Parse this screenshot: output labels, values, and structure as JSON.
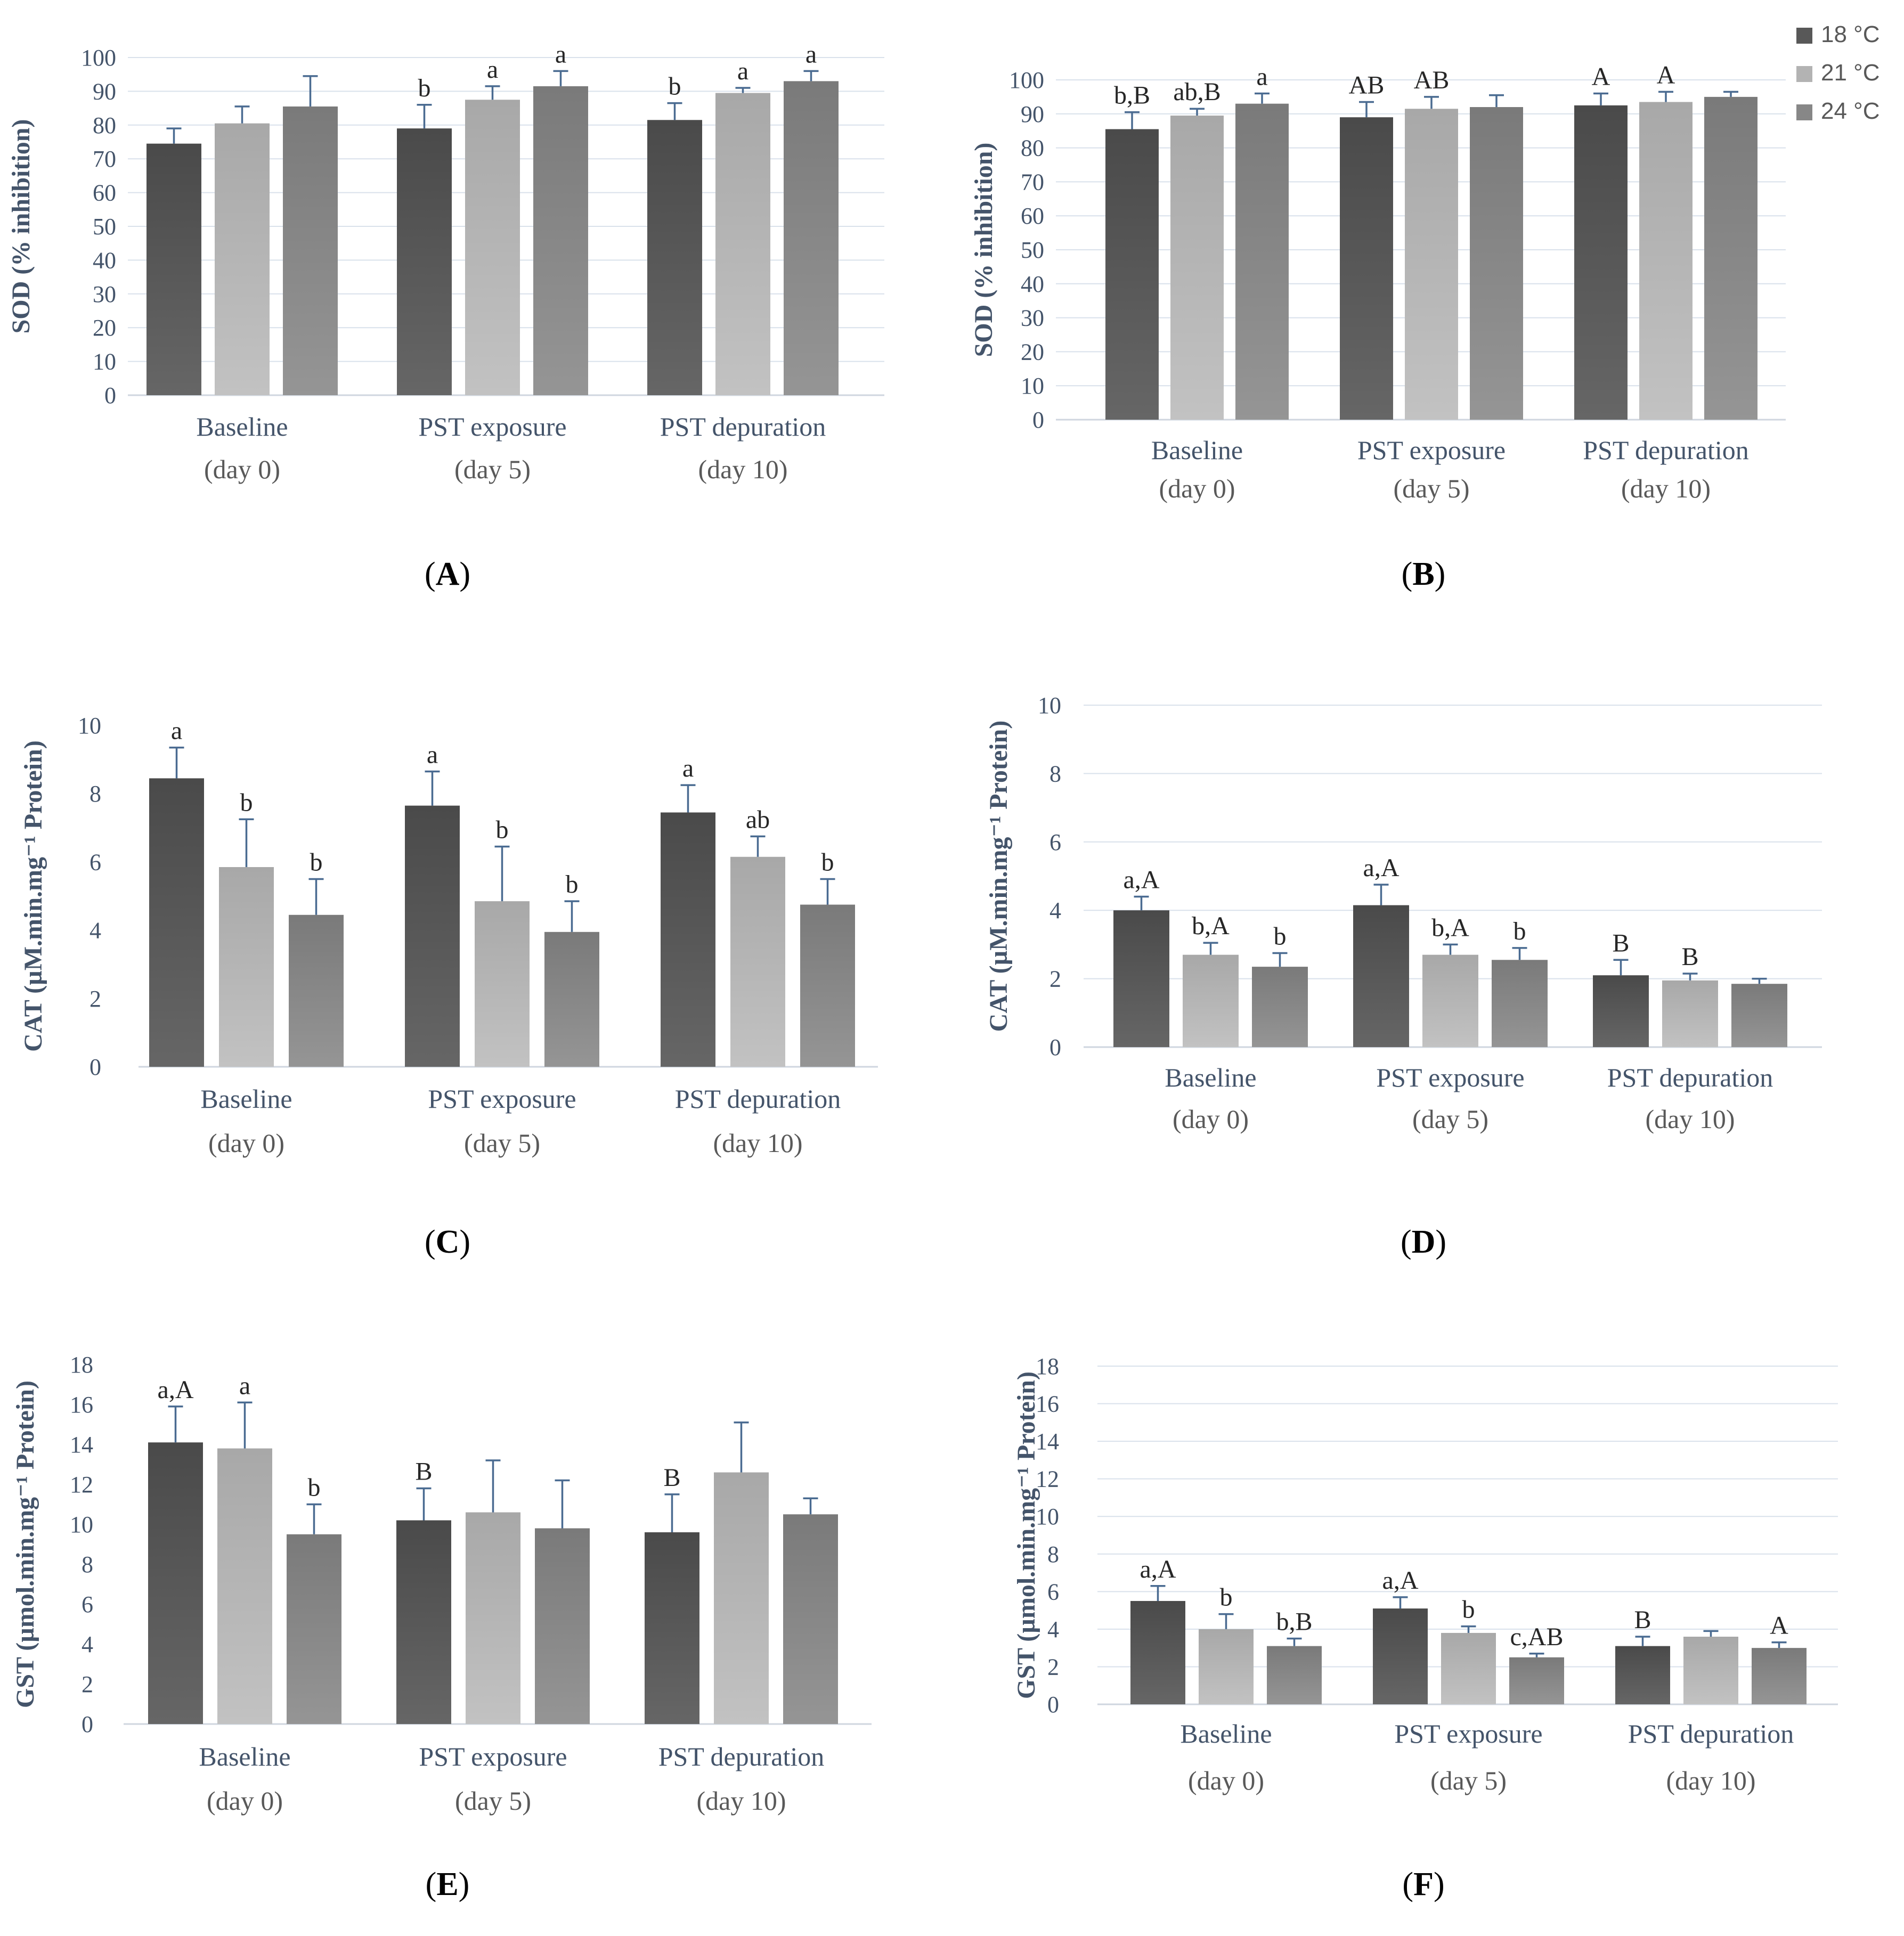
{
  "legend": {
    "items": [
      {
        "label": "18 °C",
        "color": "#585858"
      },
      {
        "label": "21 °C",
        "color": "#b3b3b3"
      },
      {
        "label": "24 °C",
        "color": "#878787"
      }
    ]
  },
  "colors": {
    "axis_text": "#44546a",
    "grid": "#d9e1eb",
    "error_bar": "#4a6b91"
  },
  "chart_data": [
    {
      "id": "A",
      "type": "bar",
      "panel_label": "A",
      "ylabel": "SOD (% inhibition)",
      "ylim": [
        0,
        100
      ],
      "ytick_step": 10,
      "grid": true,
      "categories": [
        "Baseline",
        "PST exposure",
        "PST depuration"
      ],
      "category_sublabels": [
        "(day 0)",
        "(day 5)",
        "(day 10)"
      ],
      "series": [
        {
          "name": "18 °C",
          "values": [
            74.5,
            79,
            81.5
          ],
          "errors": [
            4.5,
            7,
            5
          ],
          "labels": [
            "",
            "b",
            "b"
          ]
        },
        {
          "name": "21 °C",
          "values": [
            80.5,
            87.5,
            89.5
          ],
          "errors": [
            5,
            4,
            1.5
          ],
          "labels": [
            "",
            "a",
            "a"
          ]
        },
        {
          "name": "24 °C",
          "values": [
            85.5,
            91.5,
            93
          ],
          "errors": [
            9,
            4.5,
            3
          ],
          "labels": [
            "",
            "a",
            "a"
          ]
        }
      ]
    },
    {
      "id": "B",
      "type": "bar",
      "panel_label": "B",
      "ylabel": "SOD (% inhibition)",
      "ylim": [
        0,
        100
      ],
      "ytick_step": 10,
      "grid": true,
      "categories": [
        "Baseline",
        "PST exposure",
        "PST depuration"
      ],
      "category_sublabels": [
        "(day 0)",
        "(day 5)",
        "(day 10)"
      ],
      "series": [
        {
          "name": "18 °C",
          "values": [
            85.5,
            89,
            92.5
          ],
          "errors": [
            5,
            4.5,
            3.5
          ],
          "labels": [
            "b,B",
            "AB",
            "A"
          ]
        },
        {
          "name": "21 °C",
          "values": [
            89.5,
            91.5,
            93.5
          ],
          "errors": [
            2,
            3.5,
            3
          ],
          "labels": [
            "ab,B",
            "AB",
            "A"
          ]
        },
        {
          "name": "24 °C",
          "values": [
            93,
            92,
            95
          ],
          "errors": [
            3,
            3.5,
            1.5
          ],
          "labels": [
            "a",
            "",
            ""
          ]
        }
      ]
    },
    {
      "id": "C",
      "type": "bar",
      "panel_label": "C",
      "ylabel": "CAT (µM.min.mg⁻¹ Protein)",
      "ylim": [
        0,
        10
      ],
      "ytick_step": 2,
      "grid": false,
      "categories": [
        "Baseline",
        "PST exposure",
        "PST depuration"
      ],
      "category_sublabels": [
        "(day 0)",
        "(day 5)",
        "(day 10)"
      ],
      "series": [
        {
          "name": "18 °C",
          "values": [
            8.45,
            7.65,
            7.45
          ],
          "errors": [
            0.9,
            1.0,
            0.8
          ],
          "labels": [
            "a",
            "a",
            "a"
          ]
        },
        {
          "name": "21 °C",
          "values": [
            5.85,
            4.85,
            6.15
          ],
          "errors": [
            1.4,
            1.6,
            0.6
          ],
          "labels": [
            "b",
            "b",
            "ab"
          ]
        },
        {
          "name": "24 °C",
          "values": [
            4.45,
            3.95,
            4.75
          ],
          "errors": [
            1.05,
            0.9,
            0.75
          ],
          "labels": [
            "b",
            "b",
            "b"
          ]
        }
      ]
    },
    {
      "id": "D",
      "type": "bar",
      "panel_label": "D",
      "ylabel": "CAT (µM.min.mg⁻¹ Protein)",
      "ylim": [
        0,
        10
      ],
      "ytick_step": 2,
      "grid": true,
      "categories": [
        "Baseline",
        "PST exposure",
        "PST depuration"
      ],
      "category_sublabels": [
        "(day 0)",
        "(day 5)",
        "(day 10)"
      ],
      "series": [
        {
          "name": "18 °C",
          "values": [
            4.0,
            4.15,
            2.1
          ],
          "errors": [
            0.4,
            0.6,
            0.45
          ],
          "labels": [
            "a,A",
            "a,A",
            "B"
          ]
        },
        {
          "name": "21 °C",
          "values": [
            2.7,
            2.7,
            1.95
          ],
          "errors": [
            0.35,
            0.3,
            0.2
          ],
          "labels": [
            "b,A",
            "b,A",
            "B"
          ]
        },
        {
          "name": "24 °C",
          "values": [
            2.35,
            2.55,
            1.85
          ],
          "errors": [
            0.4,
            0.35,
            0.15
          ],
          "labels": [
            "b",
            "b",
            ""
          ]
        }
      ]
    },
    {
      "id": "E",
      "type": "bar",
      "panel_label": "E",
      "ylabel": "GST (µmol.min.mg⁻¹ Protein)",
      "ylim": [
        0,
        18
      ],
      "ytick_step": 2,
      "grid": false,
      "categories": [
        "Baseline",
        "PST exposure",
        "PST depuration"
      ],
      "category_sublabels": [
        "(day 0)",
        "(day 5)",
        "(day 10)"
      ],
      "series": [
        {
          "name": "18 °C",
          "values": [
            14.1,
            10.2,
            9.6
          ],
          "errors": [
            1.8,
            1.6,
            1.9
          ],
          "labels": [
            "a,A",
            "B",
            "B"
          ]
        },
        {
          "name": "21 °C",
          "values": [
            13.8,
            10.6,
            12.6
          ],
          "errors": [
            2.3,
            2.6,
            2.5
          ],
          "labels": [
            "a",
            "",
            ""
          ]
        },
        {
          "name": "24 °C",
          "values": [
            9.5,
            9.8,
            10.5
          ],
          "errors": [
            1.5,
            2.4,
            0.8
          ],
          "labels": [
            "b",
            "",
            ""
          ]
        }
      ]
    },
    {
      "id": "F",
      "type": "bar",
      "panel_label": "F",
      "ylabel": "GST (µmol.min.mg⁻¹ Protein)",
      "ylim": [
        0,
        18
      ],
      "ytick_step": 2,
      "grid": true,
      "categories": [
        "Baseline",
        "PST exposure",
        "PST depuration"
      ],
      "category_sublabels": [
        "(day 0)",
        "(day 5)",
        "(day 10)"
      ],
      "series": [
        {
          "name": "18 °C",
          "values": [
            5.5,
            5.1,
            3.1
          ],
          "errors": [
            0.8,
            0.6,
            0.5
          ],
          "labels": [
            "a,A",
            "a,A",
            "B"
          ]
        },
        {
          "name": "21 °C",
          "values": [
            4.0,
            3.8,
            3.6
          ],
          "errors": [
            0.8,
            0.35,
            0.3
          ],
          "labels": [
            "b",
            "b",
            ""
          ]
        },
        {
          "name": "24 °C",
          "values": [
            3.1,
            2.5,
            3.0
          ],
          "errors": [
            0.4,
            0.2,
            0.3
          ],
          "labels": [
            "b,B",
            "c,AB",
            "A"
          ]
        }
      ]
    }
  ]
}
